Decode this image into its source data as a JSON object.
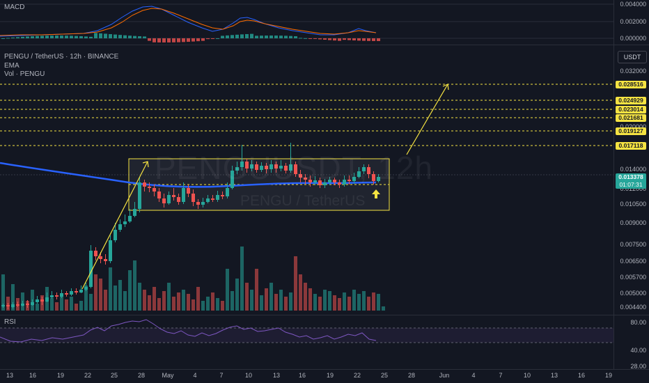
{
  "macd": {
    "label": "MACD",
    "axis": [
      "0.004000",
      "0.002000",
      "0.000000"
    ]
  },
  "main": {
    "symbol_line": "PENGU / TetherUS · 12h · BINANCE",
    "indicators": [
      "EMA",
      "Vol · PENGU"
    ],
    "currency_button": "USDT",
    "watermark_top": "PENGUUSDT, 12h",
    "watermark_bottom": "PENGU / TetherUS",
    "axis": [
      "0.032000",
      "0.020000",
      "0.014000",
      "0.012000",
      "0.010500",
      "0.009000",
      "0.007500",
      "0.006500",
      "0.005700",
      "0.005000",
      "0.004400"
    ],
    "levels": [
      "0.028516",
      "0.024929",
      "0.023014",
      "0.021681",
      "0.019127",
      "0.017118"
    ],
    "price_badge": "0.013378",
    "countdown": "01:07:31",
    "colors": {
      "level": "#f5e342",
      "up": "#26a69a",
      "down": "#ef5350",
      "ema": "#2962ff",
      "badge": "#26a69a"
    }
  },
  "rsi": {
    "label": "RSI",
    "axis": [
      "80.00",
      "40.00",
      "28.00"
    ]
  },
  "x_axis": [
    "13",
    "16",
    "19",
    "22",
    "25",
    "28",
    "May",
    "4",
    "7",
    "10",
    "13",
    "16",
    "19",
    "22",
    "25",
    "28",
    "Jun",
    "4",
    "7",
    "10",
    "13",
    "16",
    "19"
  ]
}
